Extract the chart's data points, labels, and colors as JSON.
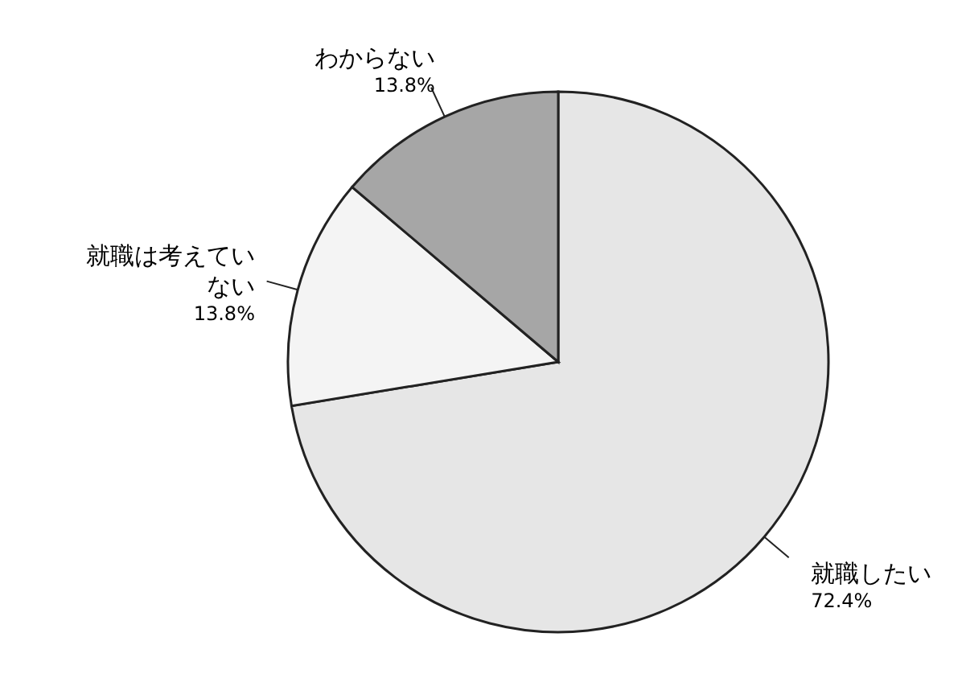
{
  "chart_data": {
    "type": "pie",
    "categories": [
      "就職したい",
      "就職は考えていない",
      "わからない"
    ],
    "values": [
      72.4,
      13.8,
      13.8
    ],
    "colors": [
      "#e6e6e6",
      "#f4f4f4",
      "#a6a6a6"
    ],
    "value_labels": [
      "72.4%",
      "13.8%",
      "13.8%"
    ]
  }
}
